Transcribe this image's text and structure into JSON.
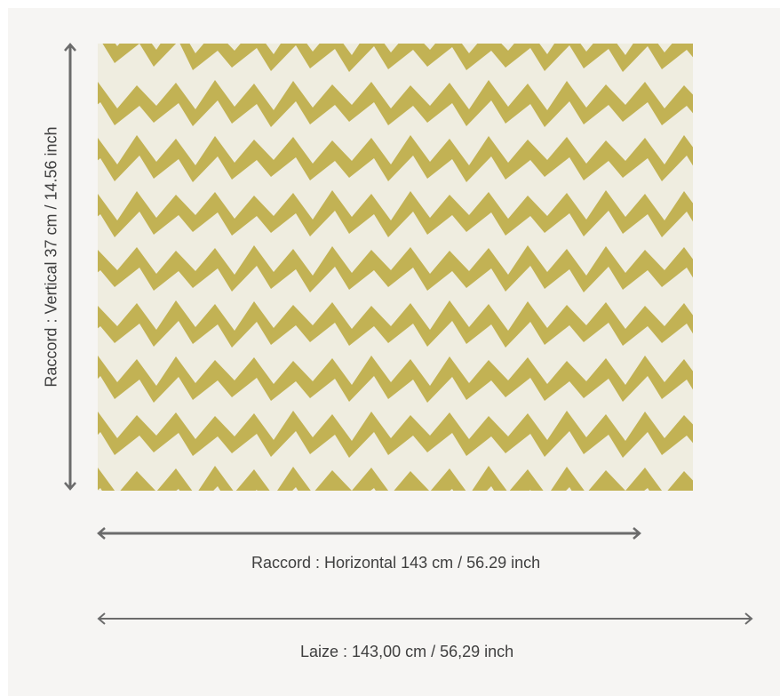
{
  "pattern": {
    "background_color": "#efede0",
    "motif_color": "#c2b254"
  },
  "arrow_color": "#6b6b6b",
  "labels": {
    "vertical_repeat": "Raccord : Vertical 37 cm / 14.56 inch",
    "horizontal_repeat": "Raccord : Horizontal 143 cm / 56.29 inch",
    "width": "Laize : 143,00 cm / 56,29 inch"
  }
}
